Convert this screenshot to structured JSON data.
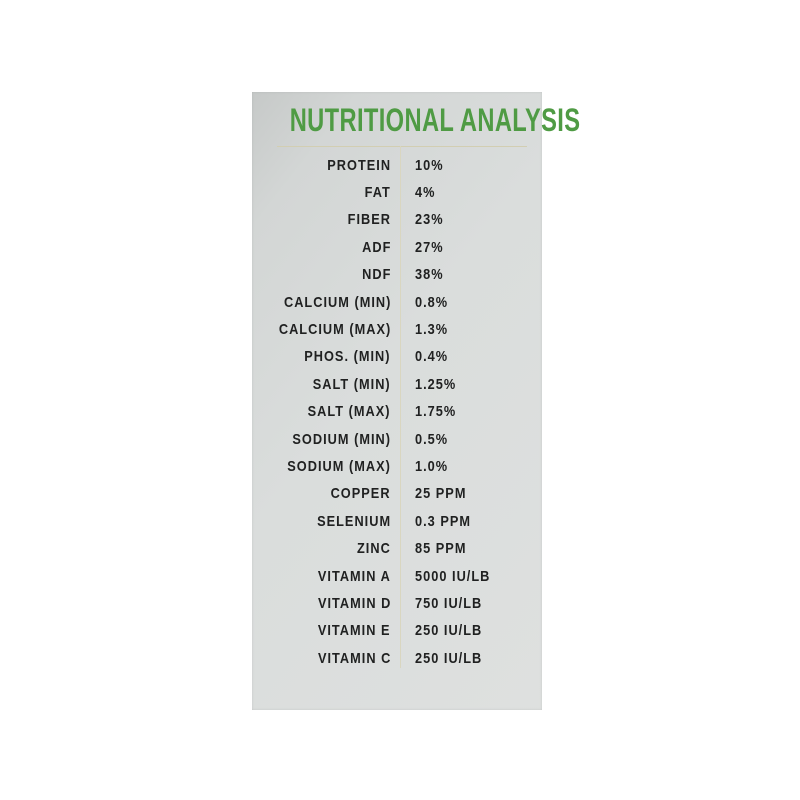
{
  "panel": {
    "title": "NUTRITIONAL ANALYSIS",
    "colors": {
      "title_green": "#4f9b44",
      "panel_background": "#dadddc",
      "text": "#202121",
      "rule_line": "#d2ceb2"
    },
    "rows": [
      {
        "label": "PROTEIN",
        "value": "10%"
      },
      {
        "label": "FAT",
        "value": "4%"
      },
      {
        "label": "FIBER",
        "value": "23%"
      },
      {
        "label": "ADF",
        "value": "27%"
      },
      {
        "label": "NDF",
        "value": "38%"
      },
      {
        "label": "CALCIUM (MIN)",
        "value": "0.8%"
      },
      {
        "label": "CALCIUM (MAX)",
        "value": "1.3%"
      },
      {
        "label": "PHOS. (MIN)",
        "value": "0.4%"
      },
      {
        "label": "SALT (MIN)",
        "value": "1.25%"
      },
      {
        "label": "SALT (MAX)",
        "value": "1.75%"
      },
      {
        "label": "SODIUM (MIN)",
        "value": "0.5%"
      },
      {
        "label": "SODIUM (MAX)",
        "value": "1.0%"
      },
      {
        "label": "COPPER",
        "value": "25 PPM"
      },
      {
        "label": "SELENIUM",
        "value": "0.3 PPM"
      },
      {
        "label": "ZINC",
        "value": "85 PPM"
      },
      {
        "label": "VITAMIN A",
        "value": "5000 IU/LB"
      },
      {
        "label": "VITAMIN D",
        "value": "750 IU/LB"
      },
      {
        "label": "VITAMIN E",
        "value": "250 IU/LB"
      },
      {
        "label": "VITAMIN C",
        "value": "250 IU/LB"
      }
    ]
  }
}
